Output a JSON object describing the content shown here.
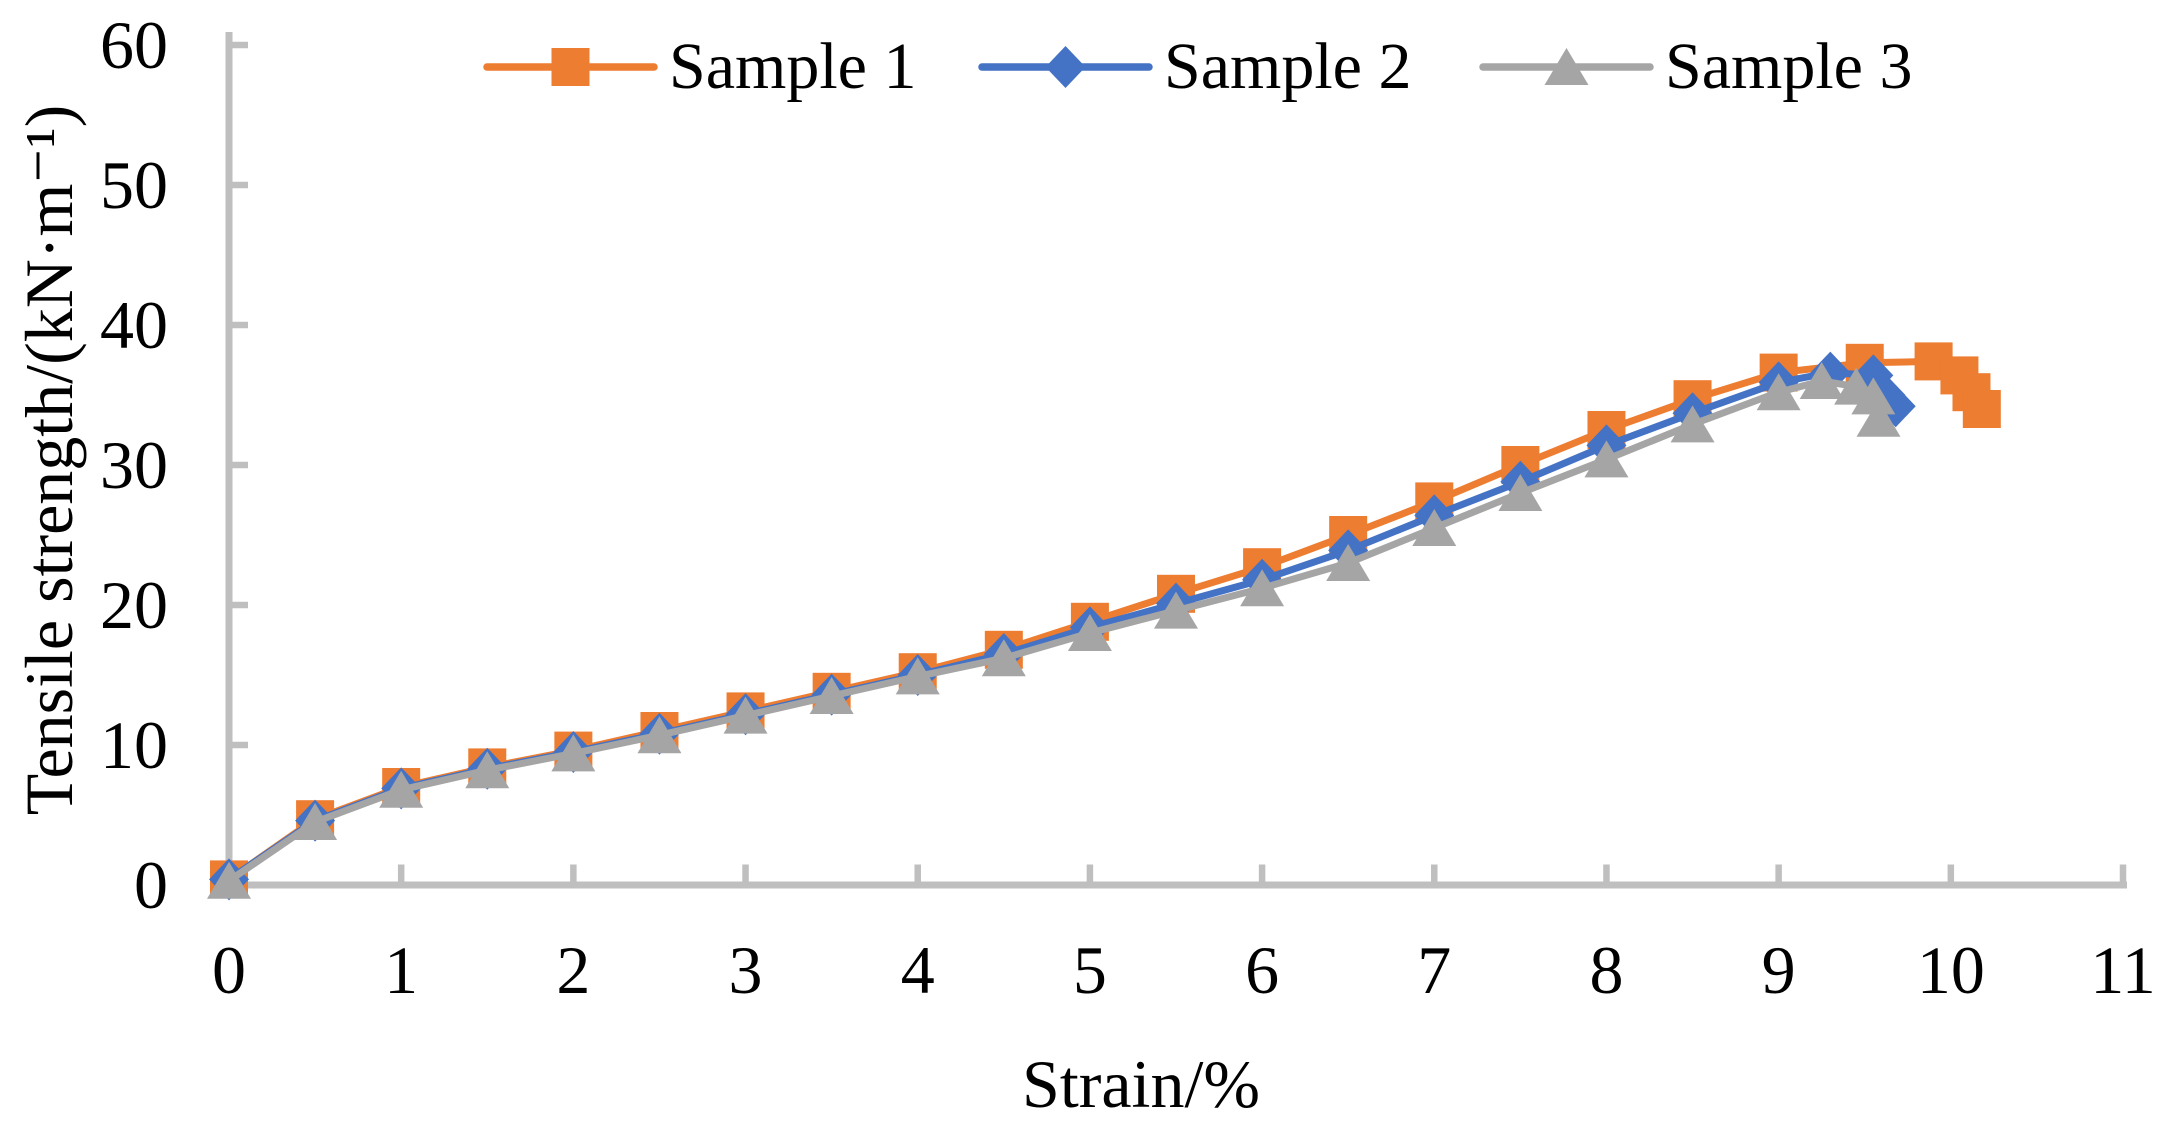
{
  "chart_data": {
    "type": "line",
    "title": "",
    "xlabel": "Strain/%",
    "ylabel": "Tensile strength/(kN·m⁻¹)",
    "xlim": [
      0,
      11
    ],
    "ylim": [
      0,
      60
    ],
    "x_ticks": [
      0,
      1,
      2,
      3,
      4,
      5,
      6,
      7,
      8,
      9,
      10,
      11
    ],
    "y_ticks": [
      0,
      10,
      20,
      30,
      40,
      50,
      60
    ],
    "grid": false,
    "legend_position": "top-center",
    "axis_color": "#bfbfbf",
    "text_color": "#000000",
    "series": [
      {
        "name": "Sample 1",
        "color": "#ED7D31",
        "marker": "square",
        "points": [
          [
            0,
            0.4
          ],
          [
            0.5,
            4.7
          ],
          [
            1,
            7.0
          ],
          [
            1.5,
            8.4
          ],
          [
            2,
            9.6
          ],
          [
            2.5,
            11.0
          ],
          [
            3,
            12.4
          ],
          [
            3.5,
            13.8
          ],
          [
            4,
            15.2
          ],
          [
            4.5,
            16.8
          ],
          [
            5,
            18.8
          ],
          [
            5.5,
            20.8
          ],
          [
            6,
            22.7
          ],
          [
            6.5,
            25.0
          ],
          [
            7,
            27.4
          ],
          [
            7.5,
            30.0
          ],
          [
            8,
            32.5
          ],
          [
            8.5,
            34.7
          ],
          [
            9,
            36.6
          ],
          [
            9.5,
            37.3
          ],
          [
            9.9,
            37.4
          ],
          [
            10.05,
            36.4
          ],
          [
            10.12,
            35.2
          ],
          [
            10.18,
            34.0
          ]
        ]
      },
      {
        "name": "Sample 2",
        "color": "#4472C4",
        "marker": "diamond",
        "points": [
          [
            0,
            0.4
          ],
          [
            0.5,
            4.6
          ],
          [
            1,
            6.9
          ],
          [
            1.5,
            8.3
          ],
          [
            2,
            9.5
          ],
          [
            2.5,
            10.8
          ],
          [
            3,
            12.2
          ],
          [
            3.5,
            13.6
          ],
          [
            4,
            15.0
          ],
          [
            4.5,
            16.5
          ],
          [
            5,
            18.4
          ],
          [
            5.5,
            20.1
          ],
          [
            6,
            21.8
          ],
          [
            6.5,
            23.9
          ],
          [
            7,
            26.4
          ],
          [
            7.5,
            28.8
          ],
          [
            8,
            31.4
          ],
          [
            8.5,
            33.7
          ],
          [
            9,
            35.9
          ],
          [
            9.3,
            36.6
          ],
          [
            9.55,
            36.4
          ],
          [
            9.62,
            35.0
          ],
          [
            9.68,
            34.2
          ]
        ]
      },
      {
        "name": "Sample 3",
        "color": "#A5A5A5",
        "marker": "triangle",
        "points": [
          [
            0,
            0.3
          ],
          [
            0.5,
            4.5
          ],
          [
            1,
            6.8
          ],
          [
            1.5,
            8.2
          ],
          [
            2,
            9.4
          ],
          [
            2.5,
            10.7
          ],
          [
            3,
            12.1
          ],
          [
            3.5,
            13.5
          ],
          [
            4,
            14.9
          ],
          [
            4.5,
            16.2
          ],
          [
            5,
            18.0
          ],
          [
            5.5,
            19.6
          ],
          [
            6,
            21.2
          ],
          [
            6.5,
            23.0
          ],
          [
            7,
            25.5
          ],
          [
            7.5,
            28.0
          ],
          [
            8,
            30.4
          ],
          [
            8.5,
            32.9
          ],
          [
            9,
            35.2
          ],
          [
            9.25,
            36.0
          ],
          [
            9.45,
            35.6
          ],
          [
            9.55,
            34.9
          ],
          [
            9.58,
            33.3
          ]
        ]
      }
    ]
  }
}
